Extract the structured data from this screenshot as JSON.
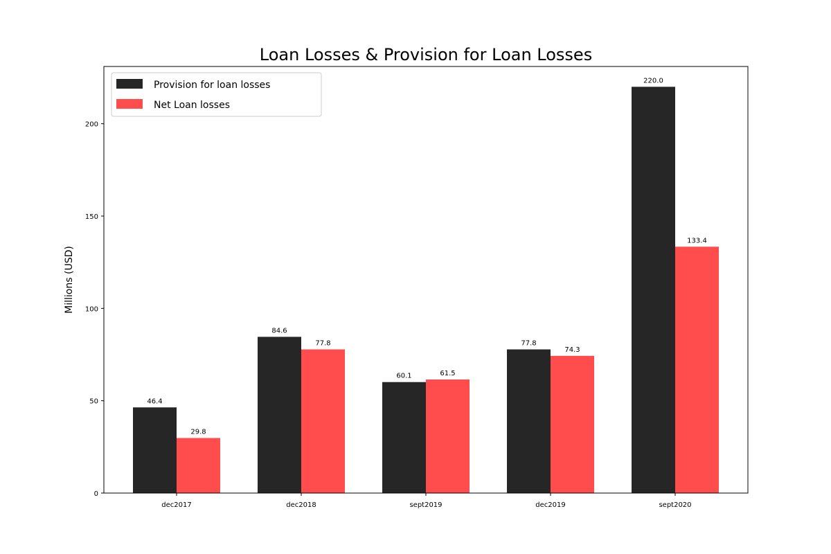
{
  "chart_data": {
    "type": "bar",
    "title": "Loan Losses & Provision for Loan Losses",
    "xlabel": "",
    "ylabel": "Millions (USD)",
    "categories": [
      "dec2017",
      "dec2018",
      "sept2019",
      "dec2019",
      "sept2020"
    ],
    "series": [
      {
        "name": "Provision for loan losses",
        "values": [
          46.4,
          84.6,
          60.1,
          77.8,
          220.0
        ],
        "color": "#262626"
      },
      {
        "name": "Net Loan losses",
        "values": [
          29.8,
          77.8,
          61.5,
          74.3,
          133.4
        ],
        "color": "#ff4c4c"
      }
    ],
    "ylim": [
      0,
      231
    ],
    "yticks": [
      0,
      50,
      100,
      150,
      200
    ],
    "grid": false,
    "legend": "top-left"
  }
}
